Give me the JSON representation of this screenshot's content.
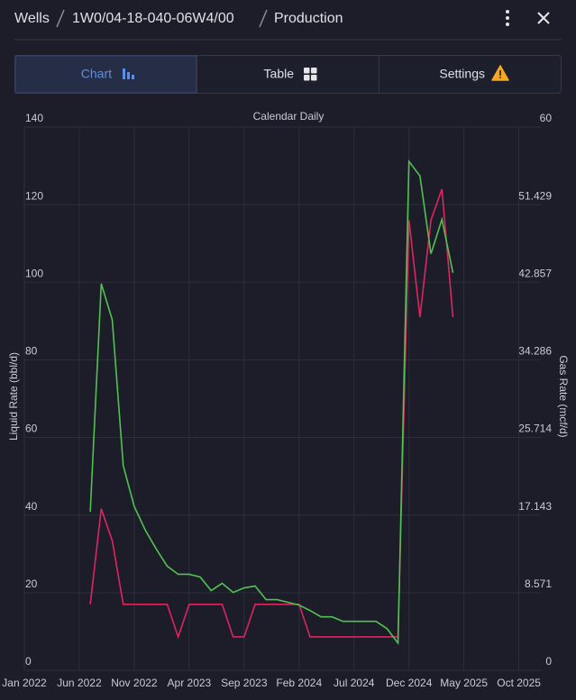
{
  "header": {
    "breadcrumbs": [
      "Wells",
      "1W0/04-18-040-06W4/00",
      "Production"
    ]
  },
  "tabs": [
    "Chart",
    "Table",
    "Settings"
  ],
  "chart_data": {
    "type": "line",
    "title": "Calendar Daily",
    "ylabel": "Liquid Rate (bbl/d)",
    "y2label": "Gas Rate (mcf/d)",
    "x": [
      "2022-07",
      "2022-08",
      "2022-09",
      "2022-10",
      "2022-11",
      "2022-12",
      "2023-01",
      "2023-02",
      "2023-03",
      "2023-04",
      "2023-05",
      "2023-06",
      "2023-07",
      "2023-08",
      "2023-09",
      "2023-10",
      "2023-11",
      "2023-12",
      "2024-01",
      "2024-02",
      "2024-03",
      "2024-04",
      "2024-05",
      "2024-06",
      "2024-07",
      "2024-08",
      "2024-09",
      "2024-10",
      "2024-11",
      "2024-12",
      "2025-01",
      "2025-02",
      "2025-03",
      "2025-04"
    ],
    "series": [
      {
        "color": "#e0245e",
        "values": [
          17,
          41.6,
          33.4,
          17,
          17,
          17,
          17,
          17,
          8.6,
          17,
          17,
          17,
          17,
          8.6,
          8.6,
          17,
          17,
          17,
          17,
          17,
          8.6,
          8.6,
          8.6,
          8.6,
          8.6,
          8.6,
          8.6,
          8.6,
          8.6,
          116,
          91,
          116,
          124,
          91
        ]
      },
      {
        "color": "#52c152",
        "axis": "y2",
        "values": [
          17.5,
          42.7,
          38.7,
          22.6,
          18.1,
          15.5,
          13.4,
          11.5,
          10.6,
          10.6,
          10.3,
          8.8,
          9.6,
          8.6,
          9.1,
          9.3,
          7.8,
          7.8,
          7.5,
          7.2,
          6.6,
          5.9,
          5.9,
          5.4,
          5.4,
          5.4,
          5.4,
          4.6,
          3.0,
          56.2,
          54.6,
          46.0,
          49.8,
          43.9
        ]
      }
    ],
    "xlim": [
      "2022-01",
      "2025-12"
    ],
    "xticks": [
      {
        "value": "2022-01",
        "label": "Jan 2022"
      },
      {
        "value": "2022-06",
        "label": "Jun 2022"
      },
      {
        "value": "2022-11",
        "label": "Nov 2022"
      },
      {
        "value": "2023-04",
        "label": "Apr 2023"
      },
      {
        "value": "2023-09",
        "label": "Sep 2023"
      },
      {
        "value": "2024-02",
        "label": "Feb 2024"
      },
      {
        "value": "2024-07",
        "label": "Jul 2024"
      },
      {
        "value": "2024-12",
        "label": "Dec 2024"
      },
      {
        "value": "2025-05",
        "label": "May 2025"
      },
      {
        "value": "2025-10",
        "label": "Oct 2025"
      }
    ],
    "ylim": [
      0,
      140
    ],
    "yticks": [
      0,
      20,
      40,
      60,
      80,
      100,
      120,
      140
    ],
    "y2lim": [
      0,
      60
    ],
    "y2ticks": [
      0,
      8.571,
      17.143,
      25.714,
      34.286,
      42.857,
      51.429,
      60
    ],
    "grid": true
  }
}
